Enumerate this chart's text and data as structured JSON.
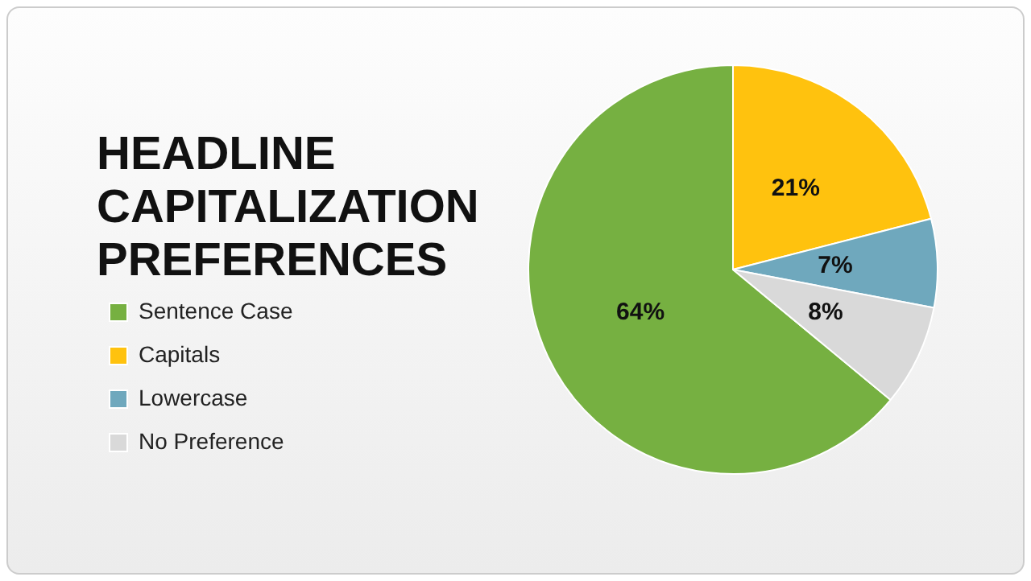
{
  "chart_data": {
    "type": "pie",
    "title": "HEADLINE CAPITALIZATION PREFERENCES",
    "categories": [
      "Sentence Case",
      "Capitals",
      "Lowercase",
      "No Preference"
    ],
    "values": [
      64,
      21,
      7,
      8
    ],
    "colors": [
      "#76b041",
      "#ffc20e",
      "#6fa8bd",
      "#d9d9d9"
    ],
    "value_labels": [
      "64%",
      "21%",
      "7%",
      "8%"
    ],
    "legend": "left"
  }
}
